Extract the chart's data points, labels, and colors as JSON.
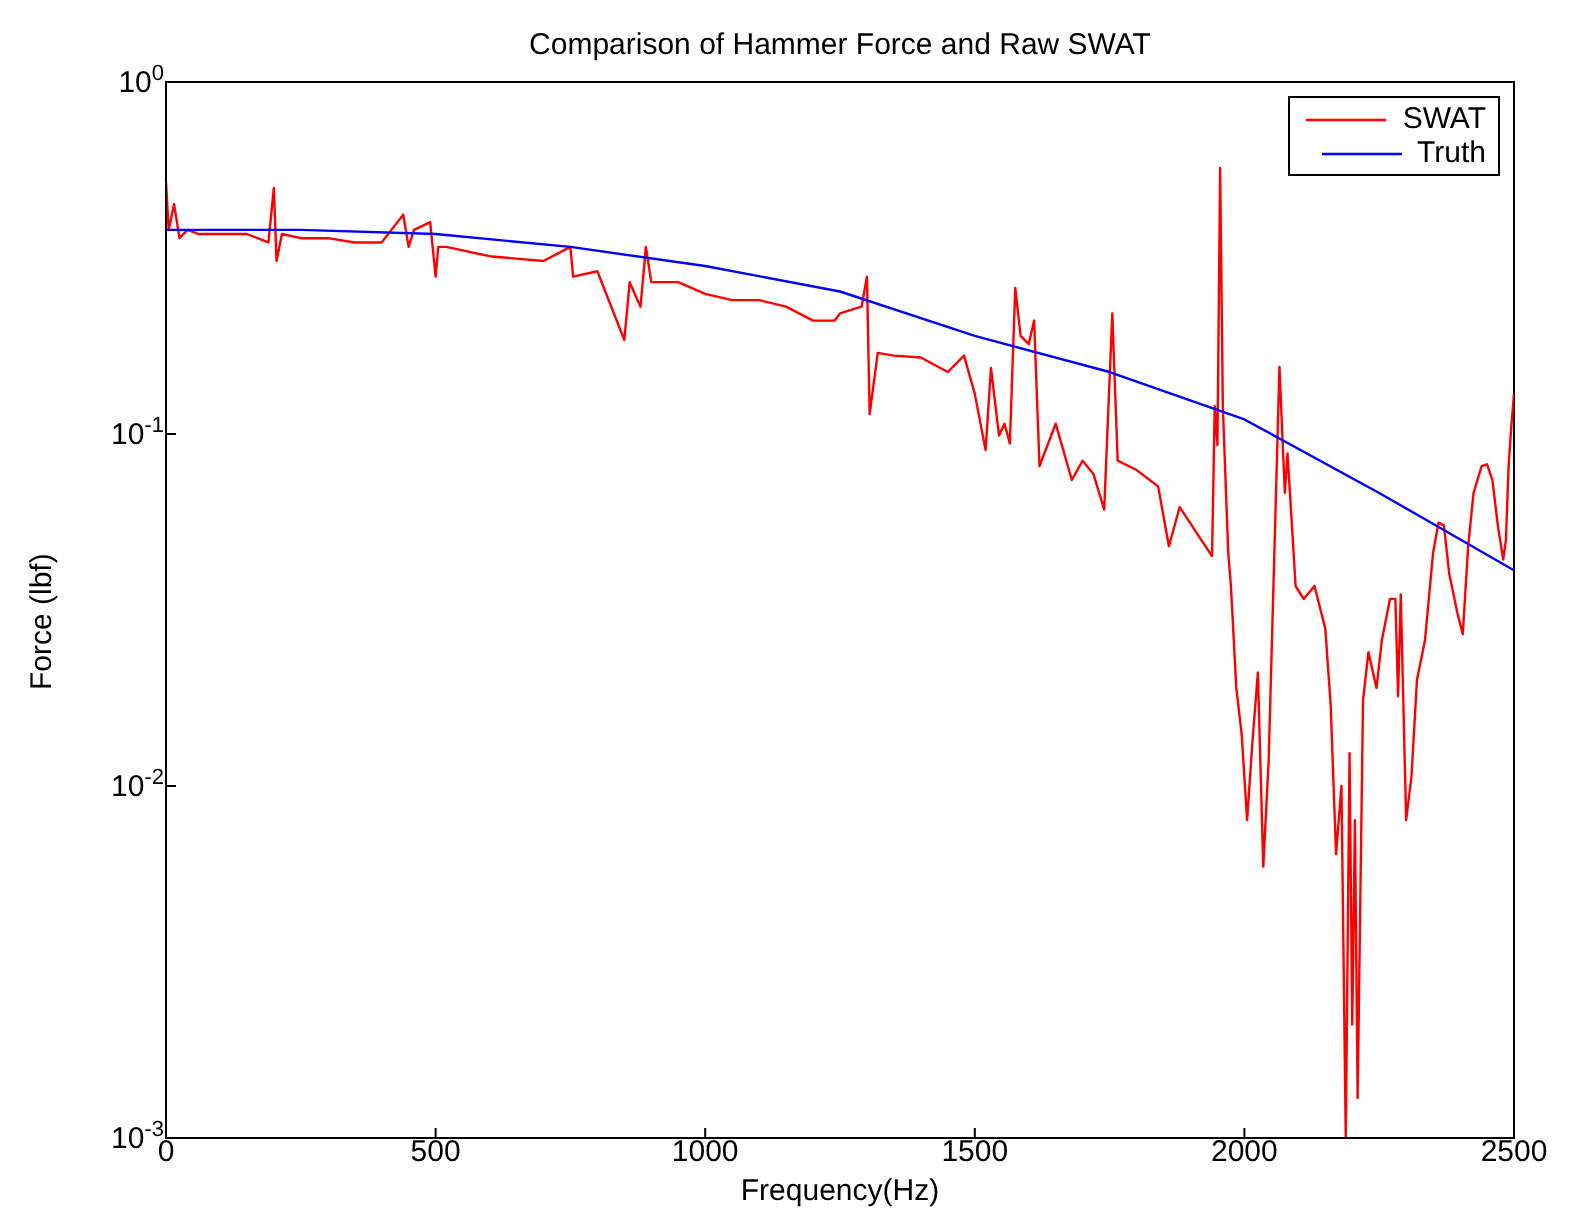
{
  "chart_data": {
    "type": "line",
    "title": "Comparison of Hammer Force and Raw SWAT",
    "xlabel": "Frequency(Hz)",
    "ylabel": "Force (lbf)",
    "log": "y",
    "xlim": [
      0,
      2500
    ],
    "xticks": [
      0,
      500,
      1000,
      1500,
      2000,
      2500
    ],
    "ylim": [
      0.001,
      1
    ],
    "yticks": [
      {
        "value": 0.001,
        "label": "10$^{-3}$"
      },
      {
        "value": 0.01,
        "label": "10$^{-2}$"
      },
      {
        "value": 0.1,
        "label": "10$^{-1}$"
      },
      {
        "value": 1,
        "label": "10$^{0}$"
      }
    ],
    "legend": "top right",
    "marker": "none",
    "line_style": "solid",
    "series": [
      {
        "name": "SWAT",
        "color": "#ff0000",
        "x": [
          0,
          5,
          15,
          25,
          40,
          60,
          100,
          150,
          190,
          200,
          205,
          215,
          250,
          300,
          350,
          400,
          440,
          450,
          460,
          490,
          500,
          505,
          520,
          600,
          700,
          750,
          755,
          800,
          850,
          860,
          880,
          890,
          900,
          950,
          1000,
          1050,
          1100,
          1150,
          1200,
          1240,
          1250,
          1290,
          1300,
          1305,
          1320,
          1350,
          1400,
          1450,
          1480,
          1500,
          1520,
          1530,
          1545,
          1555,
          1565,
          1575,
          1585,
          1600,
          1610,
          1620,
          1650,
          1680,
          1700,
          1720,
          1740,
          1755,
          1765,
          1800,
          1840,
          1860,
          1880,
          1920,
          1940,
          1945,
          1950,
          1955,
          1960,
          1970,
          1975,
          1985,
          1995,
          2005,
          2015,
          2025,
          2035,
          2045,
          2065,
          2075,
          2080,
          2095,
          2110,
          2130,
          2150,
          2160,
          2170,
          2180,
          2188,
          2195,
          2200,
          2205,
          2210,
          2220,
          2230,
          2245,
          2255,
          2270,
          2280,
          2285,
          2290,
          2300,
          2310,
          2320,
          2335,
          2350,
          2360,
          2370,
          2380,
          2395,
          2405,
          2415,
          2425,
          2440,
          2450,
          2460,
          2470,
          2480,
          2485,
          2490,
          2495,
          2500
        ],
        "values": [
          0.52,
          0.38,
          0.45,
          0.36,
          0.38,
          0.37,
          0.37,
          0.37,
          0.35,
          0.5,
          0.31,
          0.37,
          0.36,
          0.36,
          0.35,
          0.35,
          0.42,
          0.34,
          0.38,
          0.4,
          0.28,
          0.34,
          0.34,
          0.32,
          0.31,
          0.34,
          0.28,
          0.29,
          0.185,
          0.27,
          0.23,
          0.34,
          0.27,
          0.27,
          0.25,
          0.24,
          0.24,
          0.23,
          0.21,
          0.21,
          0.22,
          0.23,
          0.28,
          0.114,
          0.17,
          0.167,
          0.165,
          0.15,
          0.167,
          0.13,
          0.09,
          0.154,
          0.099,
          0.107,
          0.094,
          0.26,
          0.19,
          0.18,
          0.21,
          0.081,
          0.107,
          0.074,
          0.084,
          0.077,
          0.061,
          0.22,
          0.084,
          0.079,
          0.071,
          0.048,
          0.062,
          0.05,
          0.045,
          0.12,
          0.093,
          0.57,
          0.12,
          0.046,
          0.037,
          0.019,
          0.014,
          0.008,
          0.0134,
          0.021,
          0.0059,
          0.0118,
          0.155,
          0.068,
          0.088,
          0.037,
          0.034,
          0.037,
          0.028,
          0.017,
          0.0064,
          0.01,
          0.001,
          0.0124,
          0.0021,
          0.008,
          0.0013,
          0.0175,
          0.024,
          0.019,
          0.026,
          0.034,
          0.034,
          0.018,
          0.035,
          0.008,
          0.0107,
          0.02,
          0.026,
          0.046,
          0.056,
          0.055,
          0.04,
          0.031,
          0.027,
          0.048,
          0.068,
          0.081,
          0.082,
          0.074,
          0.055,
          0.044,
          0.05,
          0.081,
          0.105,
          0.13
        ]
      },
      {
        "name": "Truth",
        "color": "#0000ff",
        "x": [
          0,
          250,
          500,
          750,
          1000,
          1250,
          1500,
          1750,
          2000,
          2250,
          2500
        ],
        "values": [
          0.38,
          0.38,
          0.37,
          0.34,
          0.3,
          0.254,
          0.19,
          0.15,
          0.11,
          0.068,
          0.041
        ]
      }
    ]
  }
}
